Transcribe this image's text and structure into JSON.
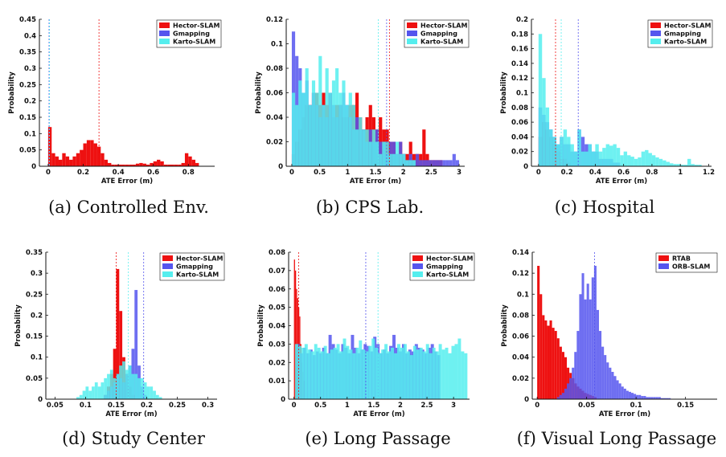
{
  "figure": {
    "captions": [
      "(a) Controlled Env.",
      "(b) CPS Lab.",
      "(c) Hospital",
      "(d) Study Center",
      "(e) Long Passage",
      "(f) Visual Long Passage"
    ]
  },
  "colors": {
    "hector": "#ee1111",
    "gmapping": "#5555ee",
    "karto": "#55eeee",
    "rtab": "#ee1111",
    "orb": "#5555ee"
  },
  "chart_data": [
    {
      "type": "histogram",
      "caption": "(a) Controlled Env.",
      "xlabel": "ATE Error (m)",
      "ylabel": "Probability",
      "xlim": [
        -0.05,
        0.95
      ],
      "ylim": [
        0,
        0.45
      ],
      "xticks": [
        0,
        0.2,
        0.4,
        0.6,
        0.8
      ],
      "xtick_labels": [
        "0",
        "0.2",
        "0.4",
        "0.6",
        "0.8"
      ],
      "yticks": [
        0,
        0.05,
        0.1,
        0.15,
        0.2,
        0.25,
        0.3,
        0.35,
        0.4,
        0.45
      ],
      "ytick_labels": [
        "0",
        "0.05",
        "0.1",
        "0.15",
        "0.2",
        "0.25",
        "0.3",
        "0.35",
        "0.4",
        "0.45"
      ],
      "legend": [
        "Hector-SLAM",
        "Gmapping",
        "Karto-SLAM"
      ],
      "series": [
        {
          "name": "Hector-SLAM",
          "color": "#ee1111",
          "bin_start": 0,
          "bin_width": 0.02,
          "values": [
            0.12,
            0.04,
            0.03,
            0.02,
            0.04,
            0.03,
            0.02,
            0.03,
            0.04,
            0.05,
            0.07,
            0.08,
            0.08,
            0.07,
            0.06,
            0.04,
            0.02,
            0.01,
            0.005,
            0.005,
            0.005,
            0.005,
            0.005,
            0.005,
            0.005,
            0.008,
            0.01,
            0.008,
            0.005,
            0.01,
            0.015,
            0.02,
            0.015,
            0.005,
            0.005,
            0.005,
            0.005,
            0.005,
            0.01,
            0.04,
            0.03,
            0.02,
            0.01
          ],
          "vline": 0.29
        },
        {
          "name": "Gmapping",
          "color": "#5555ee",
          "bin_start": 0,
          "bin_width": 0.02,
          "values": [],
          "vline": 0.005
        },
        {
          "name": "Karto-SLAM",
          "color": "#55eeee",
          "bin_start": 0,
          "bin_width": 0.02,
          "values": [],
          "vline": 0.008
        }
      ]
    },
    {
      "type": "histogram",
      "caption": "(b) CPS Lab.",
      "xlabel": "ATE Error (m)",
      "ylabel": "Probability",
      "xlim": [
        -0.1,
        3.1
      ],
      "ylim": [
        0,
        0.12
      ],
      "xticks": [
        0,
        0.5,
        1,
        1.5,
        2,
        2.5,
        3
      ],
      "xtick_labels": [
        "0",
        "0.5",
        "1",
        "1.5",
        "2",
        "2.5",
        "3"
      ],
      "yticks": [
        0,
        0.02,
        0.04,
        0.06,
        0.08,
        0.1,
        0.12
      ],
      "ytick_labels": [
        "0",
        "0.02",
        "0.04",
        "0.06",
        "0.08",
        "0.1",
        "0.12"
      ],
      "legend": [
        "Hector-SLAM",
        "Gmapping",
        "Karto-SLAM"
      ],
      "series": [
        {
          "name": "Hector-SLAM",
          "color": "#ee1111",
          "bin_start": 0,
          "bin_width": 0.06,
          "values": [
            0.01,
            0.02,
            0.03,
            0.04,
            0.05,
            0.05,
            0.06,
            0.06,
            0.05,
            0.06,
            0.05,
            0.06,
            0.04,
            0.05,
            0.05,
            0.04,
            0.04,
            0.05,
            0.05,
            0.06,
            0.04,
            0.03,
            0.04,
            0.05,
            0.04,
            0.03,
            0.04,
            0.03,
            0.03,
            0.02,
            0.02,
            0.01,
            0.02,
            0.01,
            0.01,
            0.02,
            0.01,
            0.01,
            0.01,
            0.03,
            0.01,
            0.005,
            0.005,
            0.005,
            0.005
          ],
          "vline": 1.75
        },
        {
          "name": "Gmapping",
          "color": "#5555ee",
          "bin_start": 0,
          "bin_width": 0.06,
          "values": [
            0.11,
            0.09,
            0.08,
            0.06,
            0.07,
            0.05,
            0.06,
            0.05,
            0.04,
            0.05,
            0.04,
            0.06,
            0.05,
            0.04,
            0.05,
            0.06,
            0.05,
            0.04,
            0.03,
            0.04,
            0.03,
            0.03,
            0.02,
            0.03,
            0.02,
            0.03,
            0.02,
            0.02,
            0.01,
            0.02,
            0.02,
            0.01,
            0.02,
            0.01,
            0.005,
            0.01,
            0.005,
            0.01,
            0.005,
            0.005,
            0.005,
            0.005,
            0.005,
            0.005,
            0.005,
            0.005,
            0.005,
            0.005,
            0.01,
            0.005
          ],
          "vline": 1.7
        },
        {
          "name": "Karto-SLAM",
          "color": "#55eeee",
          "bin_start": 0,
          "bin_width": 0.06,
          "values": [
            0.06,
            0.05,
            0.07,
            0.06,
            0.08,
            0.05,
            0.07,
            0.06,
            0.09,
            0.05,
            0.08,
            0.06,
            0.07,
            0.08,
            0.06,
            0.07,
            0.05,
            0.06,
            0.05,
            0.03,
            0.04,
            0.03,
            0.03,
            0.02,
            0.03,
            0.02,
            0.01,
            0.02,
            0.02,
            0.01,
            0.01,
            0.02,
            0.01,
            0.01,
            0.005,
            0.005,
            0.005
          ],
          "vline": 1.55
        }
      ]
    },
    {
      "type": "histogram",
      "caption": "(c) Hospital",
      "xlabel": "ATE Error (m)",
      "ylabel": "Probability",
      "xlim": [
        -0.05,
        1.22
      ],
      "ylim": [
        0,
        0.2
      ],
      "xticks": [
        0,
        0.2,
        0.4,
        0.6,
        0.8,
        1,
        1.2
      ],
      "xtick_labels": [
        "0",
        "0.2",
        "0.4",
        "0.6",
        "0.8",
        "1",
        "1.2"
      ],
      "yticks": [
        0,
        0.02,
        0.04,
        0.06,
        0.08,
        0.1,
        0.12,
        0.14,
        0.16,
        0.18,
        0.2
      ],
      "ytick_labels": [
        "0",
        "0.02",
        "0.04",
        "0.06",
        "0.08",
        "0.1",
        "0.12",
        "0.14",
        "0.16",
        "0.18",
        "0.2"
      ],
      "legend": [
        "Hector-SLAM",
        "Gmapping",
        "Karto-SLAM"
      ],
      "series": [
        {
          "name": "Hector-SLAM",
          "color": "#ee1111",
          "bin_start": 0,
          "bin_width": 0.025,
          "values": [
            0.04,
            0.06,
            0.05,
            0.04,
            0.03,
            0.02,
            0.01,
            0.01,
            0.005
          ],
          "vline": 0.12
        },
        {
          "name": "Gmapping",
          "color": "#5555ee",
          "bin_start": 0,
          "bin_width": 0.025,
          "values": [
            0.08,
            0.07,
            0.06,
            0.05,
            0.04,
            0.03,
            0.04,
            0.03,
            0.03,
            0.02,
            0.02,
            0.05,
            0.04,
            0.03,
            0.03,
            0.02,
            0.02,
            0.01,
            0.01,
            0.01,
            0.01,
            0.005,
            0.005
          ],
          "vline": 0.28
        },
        {
          "name": "Karto-SLAM",
          "color": "#55eeee",
          "bin_start": 0,
          "bin_width": 0.025,
          "values": [
            0.18,
            0.12,
            0.08,
            0.05,
            0.04,
            0.03,
            0.04,
            0.05,
            0.04,
            0.03,
            0.02,
            0.05,
            0.02,
            0.02,
            0.03,
            0.02,
            0.03,
            0.02,
            0.025,
            0.03,
            0.028,
            0.03,
            0.025,
            0.015,
            0.02,
            0.015,
            0.013,
            0.01,
            0.012,
            0.02,
            0.022,
            0.018,
            0.015,
            0.012,
            0.01,
            0.008,
            0.006,
            0.004,
            0.003,
            0.003,
            0.002,
            0.002,
            0.01,
            0.003,
            0.002,
            0.002
          ],
          "vline": 0.16
        }
      ]
    },
    {
      "type": "histogram",
      "caption": "(d) Study Center",
      "xlabel": "ATE Error (m)",
      "ylabel": "Probability",
      "xlim": [
        0.035,
        0.315
      ],
      "ylim": [
        0,
        0.35
      ],
      "xticks": [
        0.05,
        0.1,
        0.15,
        0.2,
        0.25,
        0.3
      ],
      "xtick_labels": [
        "0.05",
        "0.1",
        "0.15",
        "0.2",
        "0.25",
        "0.3"
      ],
      "yticks": [
        0,
        0.05,
        0.1,
        0.15,
        0.2,
        0.25,
        0.3,
        0.35
      ],
      "ytick_labels": [
        "0",
        "0.05",
        "0.1",
        "0.15",
        "0.2",
        "0.25",
        "0.3",
        "0.35"
      ],
      "legend": [
        "Hector-SLAM",
        "Gmapping",
        "Karto-SLAM"
      ],
      "series": [
        {
          "name": "Hector-SLAM",
          "color": "#ee1111",
          "bin_start": 0.13,
          "bin_width": 0.005,
          "values": [
            0.01,
            0.03,
            0.06,
            0.12,
            0.31,
            0.21,
            0.1,
            0.06,
            0.03,
            0.01
          ],
          "vline": 0.15
        },
        {
          "name": "Gmapping",
          "color": "#5555ee",
          "bin_start": 0.13,
          "bin_width": 0.005,
          "values": [
            0.01,
            0.02,
            0.03,
            0.04,
            0.06,
            0.05,
            0.04,
            0.06,
            0.08,
            0.12,
            0.26,
            0.08,
            0.03,
            0.01
          ],
          "vline": 0.195
        },
        {
          "name": "Karto-SLAM",
          "color": "#55eeee",
          "bin_start": 0.085,
          "bin_width": 0.005,
          "values": [
            0.005,
            0.01,
            0.02,
            0.03,
            0.02,
            0.03,
            0.04,
            0.03,
            0.04,
            0.05,
            0.06,
            0.07,
            0.05,
            0.06,
            0.08,
            0.09,
            0.07,
            0.08,
            0.06,
            0.06,
            0.05,
            0.05,
            0.04,
            0.03,
            0.03,
            0.02,
            0.01,
            0.005
          ],
          "vline": 0.17
        }
      ]
    },
    {
      "type": "histogram",
      "caption": "(e) Long Passage",
      "xlabel": "ATE Error (m)",
      "ylabel": "Probability",
      "xlim": [
        -0.1,
        3.3
      ],
      "ylim": [
        0,
        0.08
      ],
      "xticks": [
        0,
        0.5,
        1,
        1.5,
        2,
        2.5,
        3
      ],
      "xtick_labels": [
        "0",
        "0.5",
        "1",
        "1.5",
        "2",
        "2.5",
        "3"
      ],
      "yticks": [
        0,
        0.01,
        0.02,
        0.03,
        0.04,
        0.05,
        0.06,
        0.07,
        0.08
      ],
      "ytick_labels": [
        "0",
        "0.01",
        "0.02",
        "0.03",
        "0.04",
        "0.05",
        "0.06",
        "0.07",
        "0.08"
      ],
      "legend": [
        "Hector-SLAM",
        "Gmapping",
        "Karto-SLAM"
      ],
      "series": [
        {
          "name": "Hector-SLAM",
          "color": "#ee1111",
          "bin_start": 0,
          "bin_width": 0.02,
          "values": [
            0.076,
            0.07,
            0.06,
            0.055,
            0.05,
            0.045,
            0.03,
            0.02,
            0.015,
            0.01
          ],
          "vline": 0.09
        },
        {
          "name": "Gmapping",
          "color": "#5555ee",
          "bin_start": 0.05,
          "bin_width": 0.06,
          "values": [
            0.03,
            0.025,
            0.028,
            0.025,
            0.027,
            0.024,
            0.026,
            0.025,
            0.028,
            0.025,
            0.035,
            0.03,
            0.027,
            0.025,
            0.03,
            0.028,
            0.025,
            0.035,
            0.028,
            0.025,
            0.027,
            0.03,
            0.029,
            0.026,
            0.034,
            0.03,
            0.025,
            0.027,
            0.025,
            0.029,
            0.035,
            0.028,
            0.026,
            0.03,
            0.025,
            0.027,
            0.026,
            0.03,
            0.028,
            0.027,
            0.025,
            0.028,
            0.03,
            0.026,
            0.024
          ],
          "vline": 1.35
        },
        {
          "name": "Karto-SLAM",
          "color": "#55eeee",
          "bin_start": 0.02,
          "bin_width": 0.06,
          "values": [
            0.03,
            0.029,
            0.028,
            0.03,
            0.027,
            0.026,
            0.03,
            0.028,
            0.026,
            0.029,
            0.025,
            0.027,
            0.028,
            0.03,
            0.026,
            0.033,
            0.029,
            0.027,
            0.025,
            0.028,
            0.032,
            0.027,
            0.026,
            0.029,
            0.033,
            0.028,
            0.025,
            0.027,
            0.03,
            0.026,
            0.028,
            0.025,
            0.03,
            0.028,
            0.03,
            0.026,
            0.024,
            0.029,
            0.027,
            0.028,
            0.026,
            0.03,
            0.025,
            0.028,
            0.026,
            0.03,
            0.027,
            0.028,
            0.025,
            0.029,
            0.03,
            0.033,
            0.026,
            0.025
          ],
          "vline": 1.58
        }
      ]
    },
    {
      "type": "histogram",
      "caption": "(f) Visual Long Passage",
      "xlabel": "ATE Error (m)",
      "ylabel": "Probability",
      "xlim": [
        -0.005,
        0.182
      ],
      "ylim": [
        0,
        0.14
      ],
      "xticks": [
        0,
        0.05,
        0.1,
        0.15
      ],
      "xtick_labels": [
        "0",
        "0.05",
        "0.1",
        "0.15"
      ],
      "yticks": [
        0,
        0.02,
        0.04,
        0.06,
        0.08,
        0.1,
        0.12,
        0.14
      ],
      "ytick_labels": [
        "0",
        "0.02",
        "0.04",
        "0.06",
        "0.08",
        "0.1",
        "0.12",
        "0.14"
      ],
      "legend": [
        "RTAB",
        "ORB-SLAM"
      ],
      "series": [
        {
          "name": "RTAB",
          "color": "#ee1111",
          "bin_start": 0,
          "bin_width": 0.0025,
          "values": [
            0.127,
            0.1,
            0.08,
            0.075,
            0.07,
            0.075,
            0.068,
            0.065,
            0.058,
            0.05,
            0.045,
            0.04,
            0.03,
            0.025,
            0.02,
            0.015,
            0.012,
            0.01,
            0.008,
            0.006,
            0.005,
            0.004,
            0.003,
            0.002
          ],
          "vline": null
        },
        {
          "name": "ORB-SLAM",
          "color": "#5555ee",
          "bin_start": 0.02,
          "bin_width": 0.0025,
          "values": [
            0.002,
            0.004,
            0.006,
            0.01,
            0.015,
            0.02,
            0.03,
            0.045,
            0.065,
            0.1,
            0.12,
            0.095,
            0.11,
            0.095,
            0.116,
            0.127,
            0.085,
            0.065,
            0.05,
            0.042,
            0.035,
            0.03,
            0.026,
            0.022,
            0.018,
            0.015,
            0.012,
            0.01,
            0.008,
            0.007,
            0.006,
            0.005,
            0.004,
            0.004,
            0.003,
            0.003,
            0.002,
            0.002,
            0.002,
            0.002,
            0.002,
            0.002,
            0.001,
            0.001,
            0.001,
            0.001
          ],
          "vline": 0.058
        }
      ]
    }
  ]
}
